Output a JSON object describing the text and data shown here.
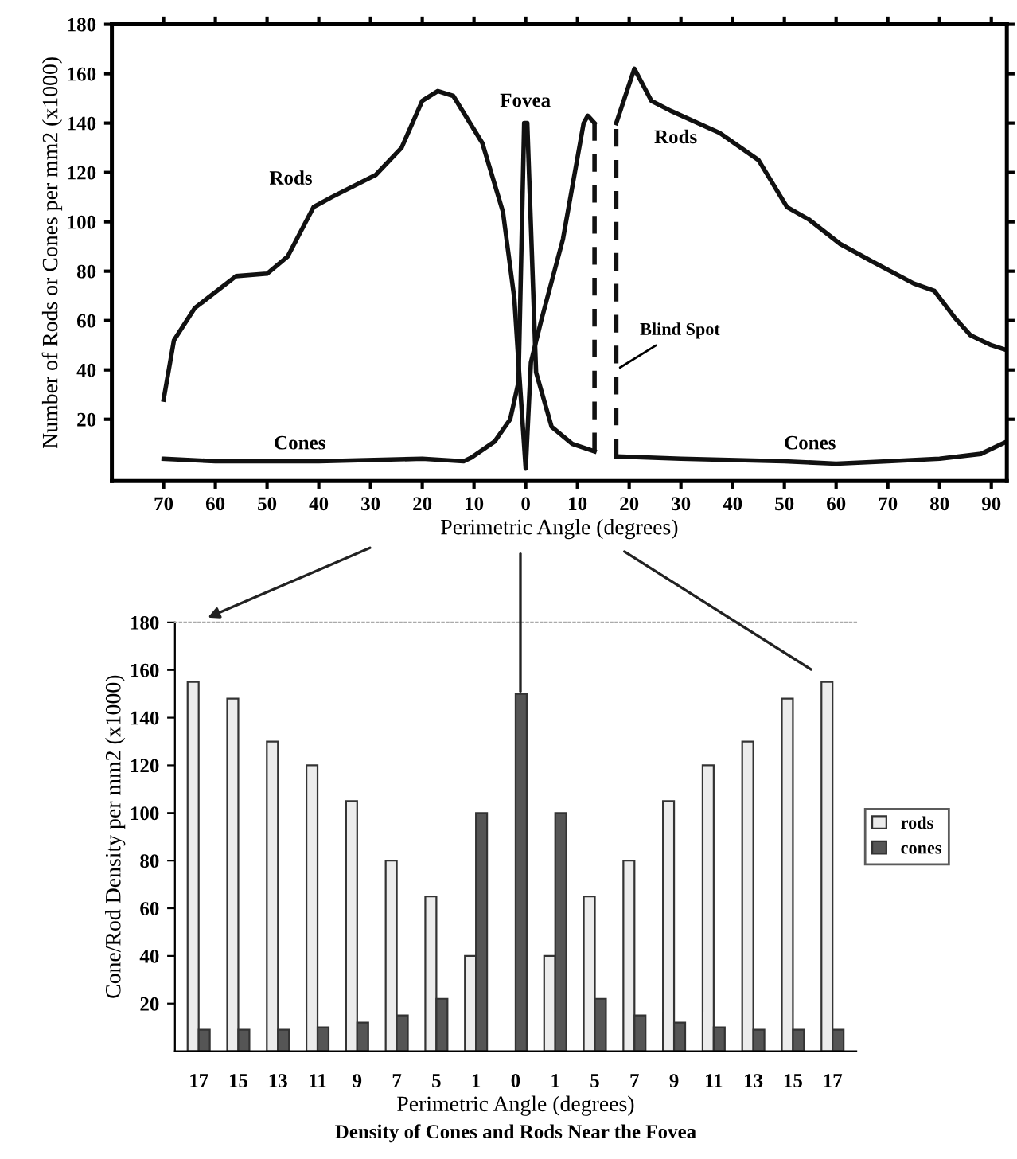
{
  "chart_data": [
    {
      "type": "line",
      "xlabel": "Perimetric Angle (degrees)",
      "ylabel": "Number of Rods or Cones per mm2 (x1000)",
      "xlim": [
        -80,
        93
      ],
      "ylim": [
        -5,
        180
      ],
      "xticks": [
        {
          "value": -70,
          "label": "70"
        },
        {
          "value": -60,
          "label": "60"
        },
        {
          "value": -50,
          "label": "50"
        },
        {
          "value": -40,
          "label": "40"
        },
        {
          "value": -30,
          "label": "30"
        },
        {
          "value": -20,
          "label": "20"
        },
        {
          "value": -10,
          "label": "10"
        },
        0,
        10,
        20,
        30,
        40,
        50,
        60,
        70,
        80,
        90
      ],
      "yticks": [
        20,
        40,
        60,
        80,
        100,
        120,
        140,
        160,
        180
      ],
      "series": [
        {
          "color": "#111111",
          "line_style": "solid",
          "x": [
            -70,
            -68,
            -64,
            -56,
            -50,
            -46,
            -41,
            -37.5,
            -29,
            -24,
            -20,
            -17,
            -14,
            -8.4,
            -4.4,
            -2.2,
            -1.4,
            0,
            1,
            3,
            7.2,
            11.2,
            12,
            13.3
          ],
          "values": [
            28,
            52,
            65,
            78,
            79,
            86,
            106,
            110,
            119,
            130,
            149,
            153,
            151,
            132,
            104,
            69,
            43,
            0,
            43,
            60,
            93,
            140,
            143,
            140
          ]
        },
        {
          "color": "#111111",
          "line_style": "dashed",
          "x": [
            13.3,
            13.3
          ],
          "values": [
            140,
            7
          ]
        },
        {
          "color": "#111111",
          "line_style": "dashed",
          "x": [
            17.5,
            17.5
          ],
          "values": [
            5,
            140
          ]
        },
        {
          "color": "#111111",
          "line_style": "solid",
          "x": [
            17.5,
            21,
            24.3,
            28,
            37.5,
            45,
            50.5,
            54.7,
            60.8,
            66.9,
            75,
            79,
            83,
            86,
            90,
            93
          ],
          "values": [
            140,
            162,
            149,
            145,
            136,
            125,
            106,
            101,
            91,
            84,
            75,
            72,
            61,
            54,
            50,
            48
          ]
        },
        {
          "color": "#111111",
          "line_style": "solid",
          "x": [
            -70,
            -60,
            -40,
            -20,
            -12,
            -10.5,
            -6,
            -3,
            -1.4,
            -0.3,
            0.3,
            2,
            5,
            9,
            13.3
          ],
          "values": [
            4,
            3,
            3,
            4,
            3,
            4.5,
            11,
            20,
            35,
            140,
            140,
            39,
            17,
            10,
            7
          ]
        },
        {
          "color": "#111111",
          "line_style": "solid",
          "x": [
            17.5,
            30,
            50,
            60,
            70,
            80,
            88,
            93
          ],
          "values": [
            5,
            4,
            3,
            2,
            3,
            4,
            6,
            11
          ]
        }
      ],
      "annotations": [
        "Rods",
        "Fovea",
        "Rods",
        "Cones",
        "Cones",
        {
          "text": "Blind Spot",
          "x": 17.5,
          "y": 40
        }
      ]
    },
    {
      "type": "bar",
      "xlabel": "Perimetric Angle (degrees)",
      "categories": [
        "17",
        "15",
        "13",
        "11",
        "9",
        "7",
        "5",
        "1",
        "0",
        "1",
        "5",
        "7",
        "9",
        "11",
        "13",
        "15",
        "17"
      ],
      "ylabel": "Cone/Rod Density per mm2 (x1000)",
      "ylim": [
        0,
        180
      ],
      "yticks": [
        20,
        40,
        60,
        80,
        100,
        120,
        140,
        160,
        180
      ],
      "legend": "right",
      "series": [
        {
          "name": "rods",
          "color": "#ececec",
          "values": [
            155,
            148,
            130,
            120,
            105,
            80,
            65,
            40,
            null,
            40,
            65,
            80,
            105,
            120,
            130,
            148,
            155
          ]
        },
        {
          "name": "cones",
          "color": "#555555",
          "values": [
            9,
            9,
            9,
            10,
            12,
            15,
            22,
            100,
            150,
            100,
            22,
            15,
            12,
            10,
            9,
            9,
            9
          ]
        }
      ],
      "annotations": [
        "Density of Cones and Rods Near the Fovea"
      ]
    }
  ]
}
